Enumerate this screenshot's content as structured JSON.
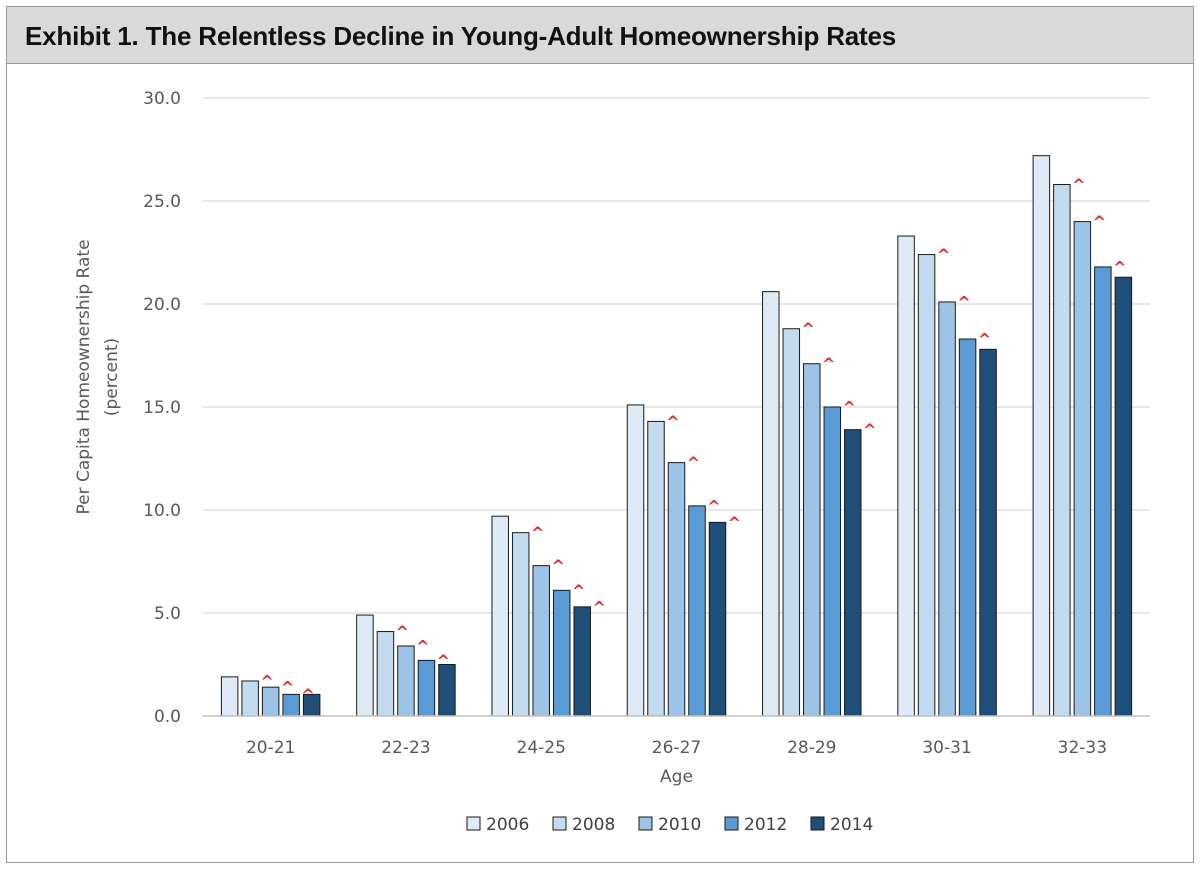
{
  "header": {
    "title": "Exhibit 1. The Relentless Decline in Young-Adult Homeownership Rates"
  },
  "colors": {
    "header_bg": "#d9d9d9",
    "grid": "#d9d9d9",
    "axis": "#bfbfbf",
    "caret": "#e03030",
    "series": [
      "#deebf7",
      "#c3dbee",
      "#9dc3e6",
      "#5b9bd5",
      "#1f4e79"
    ]
  },
  "chart_data": {
    "type": "bar",
    "title": "",
    "xlabel": "Age",
    "ylabel": "Per Capita Homeownership Rate",
    "ylabel_line2": "(percent)",
    "ylim": [
      0,
      30
    ],
    "yticks": [
      "0.0",
      "5.0",
      "10.0",
      "15.0",
      "20.0",
      "25.0",
      "30.0"
    ],
    "ytick_values": [
      0,
      5,
      10,
      15,
      20,
      25,
      30
    ],
    "grid": true,
    "legend_position": "bottom",
    "categories": [
      "20-21",
      "22-23",
      "24-25",
      "26-27",
      "28-29",
      "30-31",
      "32-33"
    ],
    "series": [
      {
        "name": "2006",
        "values": [
          1.9,
          4.9,
          9.7,
          15.1,
          20.6,
          23.3,
          27.2
        ]
      },
      {
        "name": "2008",
        "values": [
          1.7,
          4.1,
          8.9,
          14.3,
          18.8,
          22.4,
          25.8
        ]
      },
      {
        "name": "2010",
        "values": [
          1.4,
          3.4,
          7.3,
          12.3,
          17.1,
          20.1,
          24.0
        ]
      },
      {
        "name": "2012",
        "values": [
          1.05,
          2.7,
          6.1,
          10.2,
          15.0,
          18.3,
          21.8
        ]
      },
      {
        "name": "2014",
        "values": [
          1.05,
          2.5,
          5.3,
          9.4,
          13.9,
          17.8,
          21.3
        ]
      }
    ],
    "markers": {
      "symbol": "^",
      "series_names": [
        "2008",
        "2010",
        "2012",
        "2014"
      ],
      "flags": [
        [
          true,
          true,
          true,
          true,
          true,
          true,
          true
        ],
        [
          true,
          true,
          true,
          true,
          true,
          true,
          true
        ],
        [
          true,
          true,
          true,
          true,
          true,
          true,
          true
        ],
        [
          false,
          false,
          true,
          true,
          true,
          false,
          false
        ]
      ]
    }
  }
}
